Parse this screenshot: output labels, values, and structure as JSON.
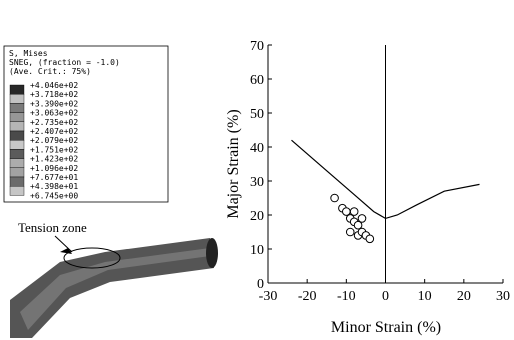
{
  "legend": {
    "lines": [
      "S, Mises",
      "SNEG, (fraction = -1.0)",
      "(Ave. Crit.: 75%)"
    ],
    "values": [
      "+4.046e+02",
      "+3.718e+02",
      "+3.390e+02",
      "+3.063e+02",
      "+2.735e+02",
      "+2.407e+02",
      "+2.079e+02",
      "+1.751e+02",
      "+1.423e+02",
      "+1.096e+02",
      "+7.677e+01",
      "+4.398e+01",
      "+6.745e+00"
    ]
  },
  "annotation": "Tension zone",
  "chart_data": {
    "type": "scatter",
    "x_label": "Minor Strain (%)",
    "y_label": "Major Strain (%)",
    "xlim": [
      -30,
      30
    ],
    "xticks": [
      -30,
      -20,
      -10,
      0,
      10,
      20,
      30
    ],
    "ylim": [
      0,
      70
    ],
    "yticks": [
      0,
      10,
      20,
      30,
      40,
      50,
      60,
      70
    ],
    "series": [
      {
        "type": "line",
        "color": "#000000",
        "x": [
          -24,
          -15,
          -8,
          -3,
          0,
          3,
          8,
          15,
          24
        ],
        "values": [
          42,
          33,
          26,
          21,
          19,
          20,
          23,
          27,
          29
        ]
      },
      {
        "type": "scatter",
        "color": "#000000",
        "x": [
          -13,
          -11,
          -10,
          -8,
          -9,
          -8,
          -7,
          -6,
          -9,
          -7,
          -6,
          -5,
          -4
        ],
        "values": [
          25,
          22,
          21,
          21,
          19,
          18,
          17,
          19,
          15,
          14,
          15,
          14,
          13
        ]
      }
    ]
  }
}
